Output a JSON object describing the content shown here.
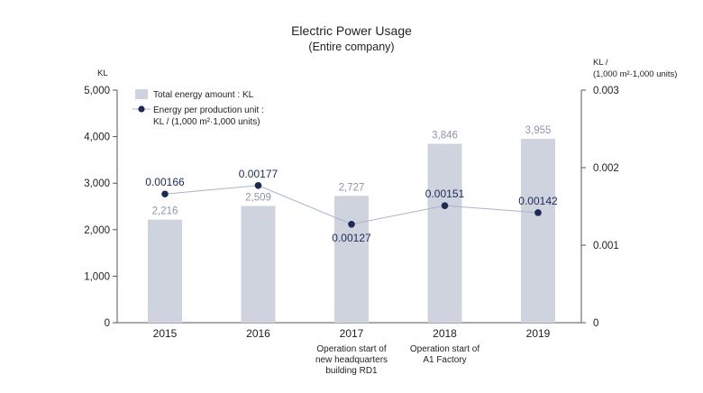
{
  "chart_data": {
    "type": "bar",
    "title": "Electric Power Usage",
    "subtitle": "(Entire company)",
    "categories": [
      "2015",
      "2016",
      "2017",
      "2018",
      "2019"
    ],
    "category_notes": [
      [],
      [],
      [
        "Operation start of",
        "new headquarters",
        "building RD1"
      ],
      [
        "Operation start of",
        "A1 Factory"
      ],
      []
    ],
    "y_left": {
      "unit": "KL",
      "ylim": [
        0,
        5000
      ],
      "ticks": [
        0,
        1000,
        2000,
        3000,
        4000,
        5000
      ],
      "tick_labels": [
        "0",
        "1,000",
        "2,000",
        "3,000",
        "4,000",
        "5,000"
      ]
    },
    "y_right": {
      "unit_lines": [
        "KL /",
        "(1,000 m²·1,000 units)"
      ],
      "ylim": [
        0,
        0.003
      ],
      "ticks": [
        0,
        0.001,
        0.002,
        0.003
      ],
      "tick_labels": [
        "0",
        "0.001",
        "0.002",
        "0.003"
      ]
    },
    "series": [
      {
        "name": "Total energy amount : KL",
        "type": "bar",
        "axis": "left",
        "color": "#cfd3de",
        "values": [
          2216,
          2509,
          2727,
          3846,
          3955
        ],
        "labels": [
          "2,216",
          "2,509",
          "2,727",
          "3,846",
          "3,955"
        ]
      },
      {
        "name": "Energy per production unit : KL / (1,000 m²·1,000 units)",
        "name_lines": [
          "Energy per production unit :",
          "KL / (1,000 m²·1,000 units)"
        ],
        "type": "line",
        "axis": "right",
        "color": "#1c2a55",
        "line_color": "#aab3cc",
        "values": [
          0.00166,
          0.00177,
          0.00127,
          0.00151,
          0.00142
        ],
        "labels": [
          "0.00166",
          "0.00177",
          "0.00127",
          "0.00151",
          "0.00142"
        ]
      }
    ],
    "legend": "top-left",
    "grid": false
  }
}
